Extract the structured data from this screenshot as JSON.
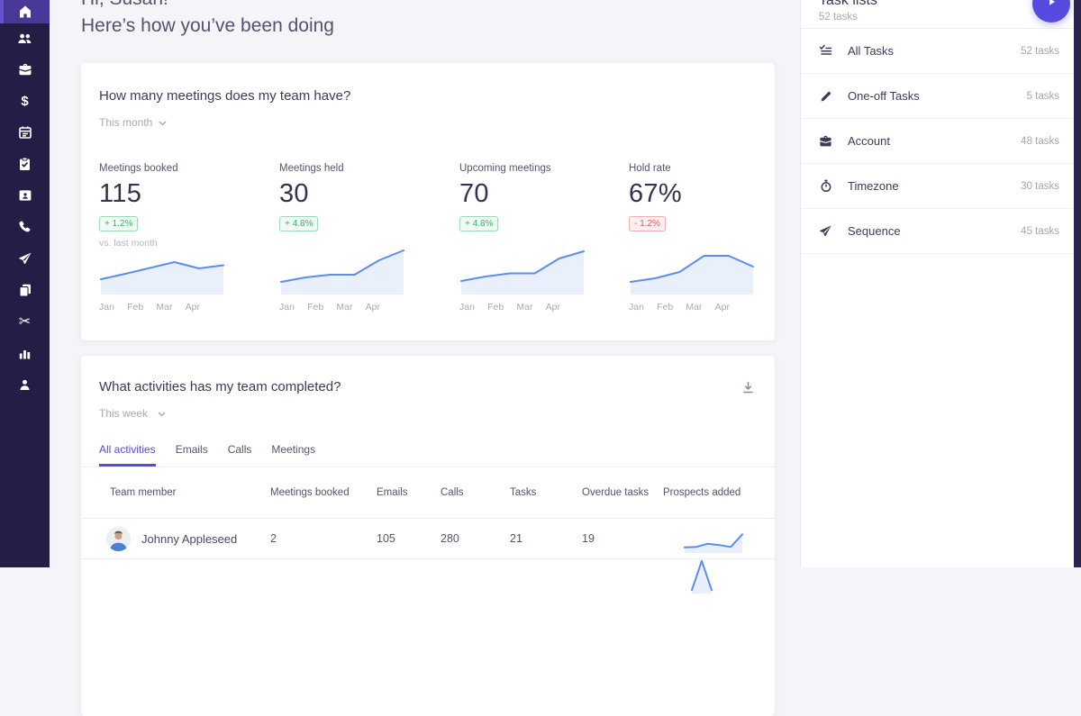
{
  "colors": {
    "accent": "#554be0",
    "sidebar_bg": "#241e46",
    "sidebar_active_bg": "#4a3899",
    "sidebar_active_strip": "#6553cc",
    "spark_line": "#5b8def",
    "spark_fill": "#e9f0fb",
    "positive": "#3cb564",
    "negative": "#e05c5c",
    "edge_strip": "#2a2450"
  },
  "greeting": {
    "line1": "Hi, Susan!",
    "line2": "Here’s how you’ve been doing"
  },
  "sidebar": {
    "items": [
      {
        "icon": "home-icon",
        "active": true
      },
      {
        "icon": "users-icon"
      },
      {
        "icon": "briefcase-icon"
      },
      {
        "icon": "dollar-icon"
      },
      {
        "icon": "calendar-icon"
      },
      {
        "icon": "clipboard-check-icon"
      },
      {
        "icon": "contact-card-icon"
      },
      {
        "icon": "phone-icon"
      },
      {
        "icon": "paper-plane-icon"
      },
      {
        "icon": "documents-icon"
      },
      {
        "icon": "scissors-icon"
      },
      {
        "icon": "bar-chart-icon"
      },
      {
        "icon": "person-icon"
      }
    ]
  },
  "meetings_card": {
    "title": "How many meetings does my team have?",
    "period_label": "This month",
    "metrics": [
      {
        "label": "Meetings booked",
        "value": "115",
        "delta": "+ 1.2%",
        "trend": "positive",
        "note": "vs. last month"
      },
      {
        "label": "Meetings held",
        "value": "30",
        "delta": "+ 4.8%",
        "trend": "positive"
      },
      {
        "label": "Upcoming meetings",
        "value": "70",
        "delta": "+ 4.8%",
        "trend": "positive"
      },
      {
        "label": "Hold rate",
        "value": "67%",
        "delta": "- 1.2%",
        "trend": "negative"
      }
    ]
  },
  "activities_card": {
    "title": "What activities has my team completed?",
    "period_label": "This week",
    "tabs": [
      {
        "label": "All activities",
        "active": true
      },
      {
        "label": "Emails",
        "active": false
      },
      {
        "label": "Calls",
        "active": false
      },
      {
        "label": "Meetings",
        "active": false
      }
    ],
    "table": {
      "columns": [
        "Team member",
        "Meetings booked",
        "Emails",
        "Calls",
        "Tasks",
        "Overdue tasks",
        "Prospects added"
      ],
      "rows": [
        {
          "name": "Johnny Appleseed",
          "meetings_booked": "2",
          "emails": "105",
          "calls": "280",
          "tasks": "21",
          "overdue_tasks": "19"
        }
      ]
    }
  },
  "task_panel": {
    "title": "Task lists",
    "subtitle": "52 tasks",
    "items": [
      {
        "icon": "checklist-icon",
        "label": "All Tasks",
        "count": "52 tasks"
      },
      {
        "icon": "pencil-icon",
        "label": "One-off Tasks",
        "count": "5 tasks"
      },
      {
        "icon": "briefcase-icon",
        "label": "Account",
        "count": "48 tasks"
      },
      {
        "icon": "stopwatch-icon",
        "label": "Timezone",
        "count": "30 tasks"
      },
      {
        "icon": "paper-plane-icon",
        "label": "Sequence",
        "count": "45 tasks"
      }
    ]
  },
  "chart_data": [
    {
      "type": "area",
      "metric": "Meetings booked",
      "x_labels": [
        "Jan",
        "Feb",
        "Mar",
        "Apr"
      ],
      "values": [
        30,
        42,
        55,
        68,
        54,
        61
      ],
      "scale": "relative 0-100, y axis unlabeled"
    },
    {
      "type": "area",
      "metric": "Meetings held",
      "x_labels": [
        "Jan",
        "Feb",
        "Mar",
        "Apr"
      ],
      "values": [
        24,
        34,
        40,
        40,
        72,
        94
      ],
      "scale": "relative 0-100, y axis unlabeled"
    },
    {
      "type": "area",
      "metric": "Upcoming meetings",
      "x_labels": [
        "Jan",
        "Feb",
        "Mar",
        "Apr"
      ],
      "values": [
        26,
        36,
        43,
        43,
        76,
        92
      ],
      "scale": "relative 0-100, y axis unlabeled"
    },
    {
      "type": "area",
      "metric": "Hold rate",
      "x_labels": [
        "Jan",
        "Feb",
        "Mar",
        "Apr"
      ],
      "values": [
        24,
        32,
        46,
        82,
        82,
        58
      ],
      "scale": "relative 0-100, y axis unlabeled"
    },
    {
      "type": "area",
      "metric": "Prospects added — Johnny Appleseed",
      "values": [
        16,
        18,
        32,
        26,
        18,
        72
      ],
      "scale": "relative 0-100, y axis unlabeled"
    },
    {
      "type": "area",
      "metric": "Prospects added — next row, partially visible",
      "values": [
        5,
        95,
        5
      ],
      "scale": "relative 0-100, y axis unlabeled"
    }
  ]
}
